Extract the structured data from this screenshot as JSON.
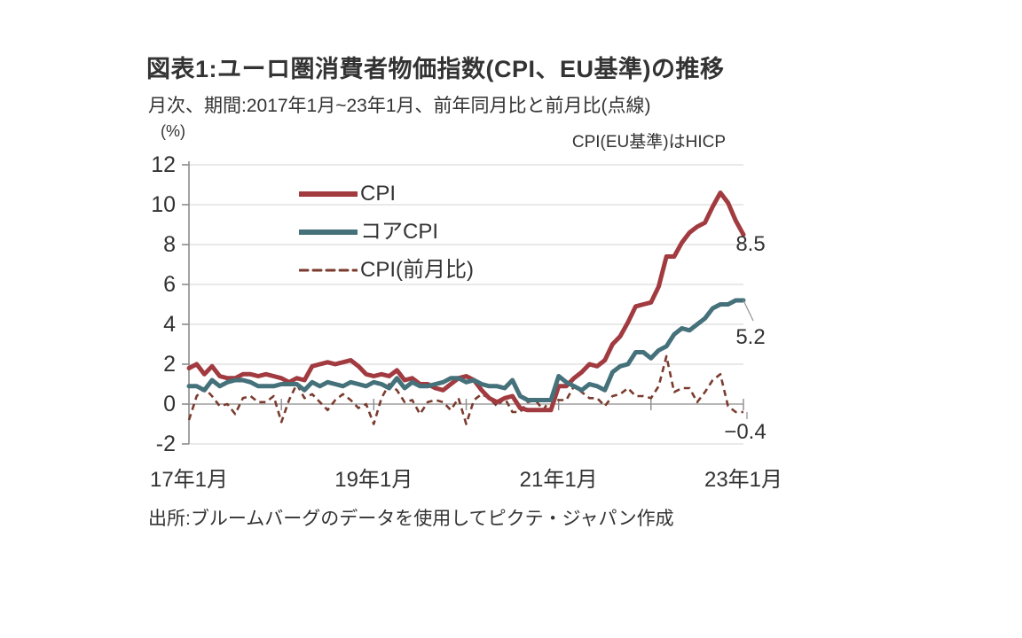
{
  "header": {
    "title": "図表1:ユーロ圏消費者物価指数(CPI、EU基準)の推移",
    "subtitle": "月次、期間:2017年1月~23年1月、前年同月比と前月比(点線)",
    "axis_unit": "(%)",
    "note": "CPI(EU基準)はHICP"
  },
  "footer": {
    "source": "出所:ブルームバーグのデータを使用してピクテ・ジャパン作成"
  },
  "end_labels": {
    "cpi": "8.5",
    "core_cpi": "5.2",
    "cpi_mom": "−0.4"
  },
  "colors": {
    "cpi_line": "#a13b40",
    "core_cpi_line": "#45717b",
    "cpi_mom_line": "#7a3b2e",
    "text": "#333333",
    "gridline": "#dcdcdc",
    "axis": "#8c8c8c"
  },
  "chart_data": {
    "type": "line",
    "title": "ユーロ圏消費者物価指数(CPI、EU基準)の推移",
    "x_unit": "month",
    "x_start": "2017-01",
    "x_end": "2023-01",
    "x_tick_labels": [
      "17年1月",
      "19年1月",
      "21年1月",
      "23年1月"
    ],
    "x_tick_month_index": [
      0,
      24,
      48,
      72
    ],
    "y_ticks": [
      12,
      10,
      8,
      6,
      4,
      2,
      0,
      -2
    ],
    "ylim": [
      -2,
      12
    ],
    "grid": true,
    "legend_position": "upper-left-inside",
    "series": [
      {
        "name": "CPI",
        "slug": "cpi",
        "style": "solid",
        "color": "#a13b40",
        "end_label": "8.5",
        "values": [
          1.8,
          2.0,
          1.5,
          1.9,
          1.4,
          1.3,
          1.3,
          1.5,
          1.5,
          1.4,
          1.5,
          1.4,
          1.3,
          1.1,
          1.3,
          1.2,
          1.9,
          2.0,
          2.1,
          2.0,
          2.1,
          2.2,
          1.9,
          1.5,
          1.4,
          1.5,
          1.4,
          1.7,
          1.2,
          1.3,
          1.0,
          1.0,
          0.8,
          0.7,
          1.0,
          1.3,
          1.4,
          1.2,
          0.7,
          0.3,
          0.1,
          0.3,
          0.4,
          -0.2,
          -0.3,
          -0.3,
          -0.3,
          -0.3,
          0.9,
          0.9,
          1.3,
          1.6,
          2.0,
          1.9,
          2.2,
          3.0,
          3.4,
          4.1,
          4.9,
          5.0,
          5.1,
          5.9,
          7.4,
          7.4,
          8.1,
          8.6,
          8.9,
          9.1,
          9.9,
          10.6,
          10.1,
          9.2,
          8.5
        ]
      },
      {
        "name": "コアCPI",
        "slug": "core-cpi",
        "style": "solid",
        "color": "#45717b",
        "end_label": "5.2",
        "values": [
          0.9,
          0.9,
          0.7,
          1.2,
          0.9,
          1.1,
          1.2,
          1.2,
          1.1,
          0.9,
          0.9,
          0.9,
          1.0,
          1.0,
          1.0,
          0.7,
          1.1,
          0.9,
          1.1,
          1.0,
          0.9,
          1.1,
          1.0,
          0.9,
          1.1,
          1.0,
          0.8,
          1.3,
          0.8,
          1.1,
          0.9,
          0.9,
          1.0,
          1.1,
          1.3,
          1.3,
          1.1,
          1.2,
          1.0,
          0.9,
          0.9,
          0.8,
          1.2,
          0.4,
          0.2,
          0.2,
          0.2,
          0.2,
          1.4,
          1.1,
          0.9,
          0.7,
          1.0,
          0.9,
          0.7,
          1.6,
          1.9,
          2.0,
          2.6,
          2.6,
          2.3,
          2.7,
          2.9,
          3.5,
          3.8,
          3.7,
          4.0,
          4.3,
          4.8,
          5.0,
          5.0,
          5.2,
          5.2
        ]
      },
      {
        "name": "CPI(前月比)",
        "slug": "cpi-mom",
        "style": "dashed",
        "color": "#7a3b2e",
        "end_label": "−0.4",
        "values": [
          -0.8,
          0.4,
          0.8,
          0.4,
          -0.1,
          0.0,
          -0.5,
          0.3,
          0.4,
          0.1,
          0.1,
          0.4,
          -0.9,
          0.2,
          1.0,
          0.3,
          0.5,
          0.1,
          -0.3,
          0.2,
          0.5,
          0.2,
          -0.2,
          0.0,
          -1.0,
          0.3,
          1.0,
          0.7,
          0.1,
          0.2,
          -0.5,
          0.1,
          0.2,
          0.1,
          -0.3,
          0.3,
          -1.0,
          0.2,
          0.5,
          0.3,
          -0.1,
          0.3,
          -0.4,
          -0.4,
          0.1,
          0.2,
          -0.3,
          0.3,
          0.2,
          0.2,
          0.9,
          0.6,
          0.3,
          0.3,
          -0.1,
          0.4,
          0.5,
          0.8,
          0.4,
          0.4,
          0.3,
          0.9,
          2.4,
          0.6,
          0.8,
          0.8,
          0.1,
          0.6,
          1.2,
          1.5,
          -0.1,
          -0.4,
          -0.4
        ]
      }
    ]
  }
}
